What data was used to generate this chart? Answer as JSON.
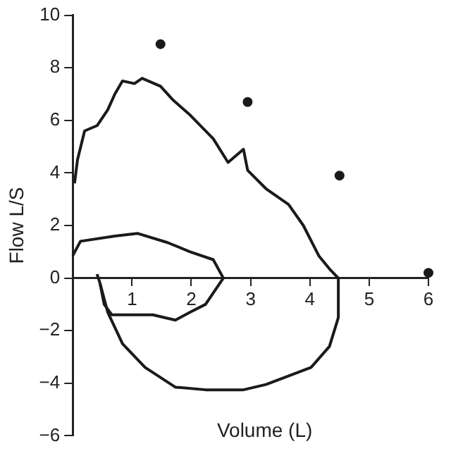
{
  "chart_data": {
    "type": "line",
    "xlabel": "Volume (L)",
    "ylabel": "Flow L/S",
    "xlim": [
      0,
      6
    ],
    "ylim": [
      -6,
      10
    ],
    "xticks": [
      {
        "value": 0,
        "label": null
      },
      1,
      2,
      3,
      4,
      5,
      6
    ],
    "yticks": [
      -6,
      -4,
      -2,
      0,
      2,
      4,
      6,
      8,
      10
    ],
    "grid": false,
    "legend": false,
    "series": [
      {
        "color": "#1a1a1a",
        "x": [
          0.03,
          0.08,
          0.2,
          0.41,
          0.59,
          0.71,
          0.84,
          1.04,
          1.17,
          1.48,
          1.68,
          1.98,
          2.37,
          2.62,
          2.88,
          2.95,
          3.26,
          3.64,
          3.89,
          4.15,
          4.35,
          4.48,
          4.48,
          4.33,
          4.02,
          3.26,
          2.88,
          2.24,
          1.73,
          1.22,
          0.84,
          0.59,
          0.46,
          0.41
        ],
        "values": [
          3.6,
          4.5,
          5.6,
          5.8,
          6.4,
          7.0,
          7.5,
          7.4,
          7.6,
          7.3,
          6.8,
          6.2,
          5.3,
          4.4,
          4.9,
          4.1,
          3.4,
          2.8,
          2.0,
          0.85,
          0.3,
          0,
          -1.5,
          -2.6,
          -3.4,
          -4.05,
          -4.25,
          -4.25,
          -4.15,
          -3.4,
          -2.5,
          -1.3,
          -0.2,
          0.15
        ]
      },
      {
        "color": "#1a1a1a",
        "x": [
          0,
          0.13,
          0.71,
          1.09,
          1.6,
          1.98,
          2.37,
          2.54,
          2.24,
          1.98,
          1.73,
          1.35,
          0.97,
          0.66,
          0.53,
          0.46
        ],
        "values": [
          0.85,
          1.4,
          1.6,
          1.7,
          1.35,
          1.0,
          0.7,
          0,
          -1.0,
          -1.3,
          -1.6,
          -1.4,
          -1.4,
          -1.4,
          -1.0,
          -0.2
        ]
      },
      {
        "type": "scatter",
        "color": "#1a1a1a",
        "marker": "circle",
        "x": [
          1.48,
          2.95,
          4.5,
          6.0
        ],
        "values": [
          8.9,
          6.7,
          3.9,
          0.2
        ]
      }
    ]
  }
}
